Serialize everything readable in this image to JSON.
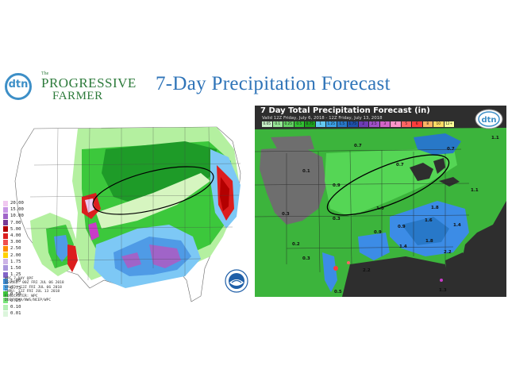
{
  "header": {
    "logo": {
      "dtn": "dtn",
      "the": "The",
      "line1": "PROGRESSIVE",
      "line2": "FARMER"
    },
    "title": "7-Day Precipitation Forecast"
  },
  "left_map": {
    "legend_values": [
      "20.00",
      "15.00",
      "10.00",
      "7.00",
      "5.00",
      "4.00",
      "3.00",
      "2.50",
      "2.00",
      "1.75",
      "1.50",
      "1.25",
      "1.00",
      "0.75",
      "0.50",
      "0.25",
      "0.10",
      "0.01"
    ],
    "legend_colors": [
      "#f0c8f0",
      "#c896e6",
      "#a064c8",
      "#783c96",
      "#b40000",
      "#dc1e1e",
      "#f05050",
      "#ff8c00",
      "#ffd200",
      "#cdb4e6",
      "#aa96dc",
      "#8264c8",
      "#3c8cd2",
      "#50aaf0",
      "#3cc83c",
      "#78e678",
      "#b4f0b4",
      "#dcf5dc"
    ],
    "info_lines": [
      "WPC 7-DAY QPF",
      "ISSUED: 00Z FRI JUL 06 2018",
      "VALID: 12Z FRI JUL 06 2018",
      "THRU: 12Z FRI JUL 13 2018",
      "FORECASTER: WPC",
      "DOC/NOAA/NWS/NCEP/WPC"
    ],
    "colors": {
      "light_green": "#b4f0a0",
      "green": "#3cc83c",
      "dark_green": "#1e9b28",
      "blue": "#4f9be6",
      "light_blue": "#7dc8f5",
      "purple": "#a064c8",
      "red": "#dc1e1e",
      "magenta": "#c83cc8"
    }
  },
  "right_map": {
    "title": "7 Day Total Precipitation Forecast (in)",
    "subtitle": "Valid 12Z Friday, July 6, 2018 - 12Z Friday, July 13, 2018",
    "colorbar_labels": [
      "0.05",
      "0.1",
      "0.25",
      "0.5",
      "0.75",
      "1",
      "1.25",
      "1.5",
      "1.75",
      "2",
      "2.5",
      "3",
      "4",
      "5",
      "6",
      "8",
      "10",
      "12+"
    ],
    "colorbar_colors": [
      "#c8f0c8",
      "#96e696",
      "#64d264",
      "#32be32",
      "#1ea01e",
      "#64c8f0",
      "#3ca0e6",
      "#2878c8",
      "#1e50aa",
      "#6e3cb4",
      "#a050c8",
      "#d264c8",
      "#ff96c8",
      "#ff6464",
      "#ff3c3c",
      "#ffb464",
      "#ffdc64",
      "#ffff96"
    ],
    "badge": "dtn",
    "values": [
      "0.7",
      "0.7",
      "0.7",
      "1.1",
      "0.1",
      "1.1",
      "0.9",
      "0.3",
      "1.6",
      "0.3",
      "1.4",
      "1.8",
      "1.0",
      "0.9",
      "1.4",
      "0.9",
      "2.2",
      "1.8",
      "0.2",
      "0.3",
      "2.2",
      "1.3",
      "0.5"
    ],
    "colors": {
      "land_gray": "#6e6e6e",
      "water": "#2e2e2e",
      "green": "#3cb43c",
      "bright_green": "#55d655",
      "blue": "#3c8ce6"
    }
  }
}
